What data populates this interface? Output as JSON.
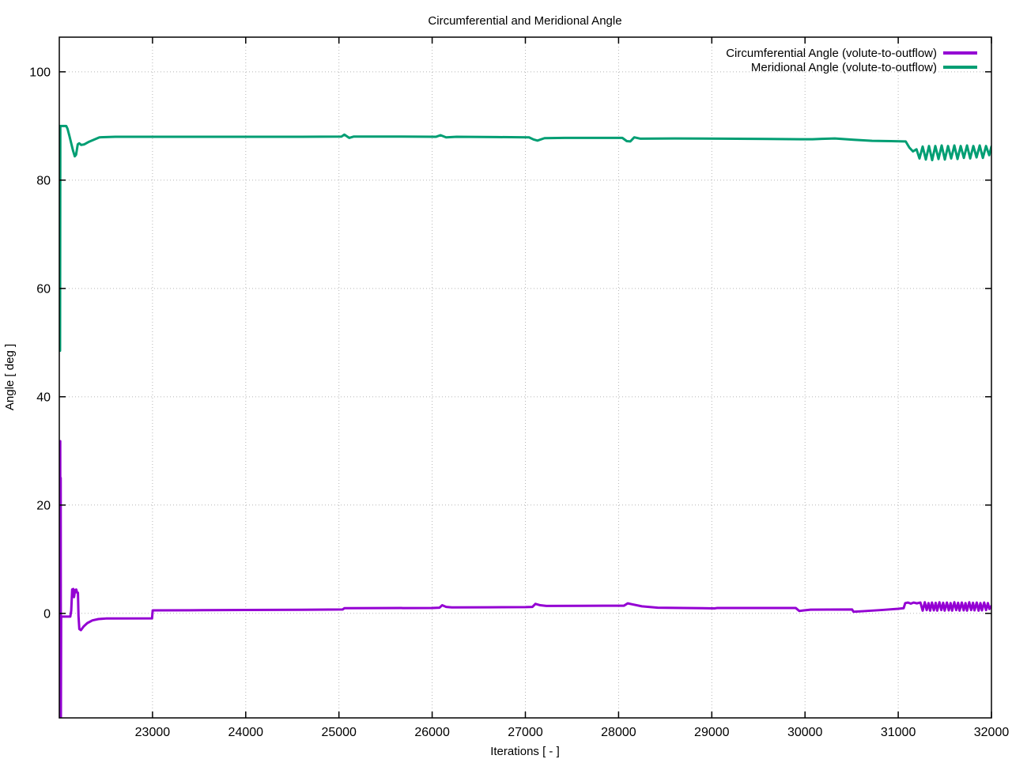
{
  "chart_data": {
    "type": "line",
    "title": "Circumferential and Meridional Angle",
    "xlabel": "Iterations [ - ]",
    "ylabel": "Angle [ deg ]",
    "xlim": [
      22000,
      32000
    ],
    "ylim": [
      -19.3,
      106.4
    ],
    "xticks": [
      23000,
      24000,
      25000,
      26000,
      27000,
      28000,
      29000,
      30000,
      31000,
      32000
    ],
    "yticks": [
      0,
      20,
      40,
      60,
      80,
      100
    ],
    "grid": true,
    "grid_style": "dotted",
    "grid_color": "#b5b5b5",
    "axis_color": "#000000",
    "background_color": "#ffffff",
    "legend_position": "top-right-inside",
    "series": [
      {
        "name": "Circumferential Angle (volute-to-outflow)",
        "color": "#9400d3",
        "points": [
          [
            22008,
            -19.5
          ],
          [
            22010,
            31.8
          ],
          [
            22012,
            -19.5
          ],
          [
            22015,
            25.0
          ],
          [
            22017,
            -19.5
          ],
          [
            22020,
            -0.6
          ],
          [
            22118,
            -0.6
          ],
          [
            22128,
            0.5
          ],
          [
            22138,
            4.4
          ],
          [
            22150,
            4.5
          ],
          [
            22158,
            3.0
          ],
          [
            22170,
            4.3
          ],
          [
            22182,
            4.4
          ],
          [
            22192,
            3.8
          ],
          [
            22200,
            3.8
          ],
          [
            22206,
            -0.5
          ],
          [
            22215,
            -2.9
          ],
          [
            22232,
            -3.1
          ],
          [
            22262,
            -2.4
          ],
          [
            22300,
            -1.8
          ],
          [
            22355,
            -1.3
          ],
          [
            22420,
            -1.05
          ],
          [
            22500,
            -0.95
          ],
          [
            22995,
            -0.92
          ],
          [
            23002,
            0.55
          ],
          [
            23400,
            0.58
          ],
          [
            24000,
            0.62
          ],
          [
            24600,
            0.66
          ],
          [
            25040,
            0.72
          ],
          [
            25058,
            0.95
          ],
          [
            25400,
            0.97
          ],
          [
            26000,
            1.0
          ],
          [
            26078,
            1.05
          ],
          [
            26108,
            1.5
          ],
          [
            26150,
            1.2
          ],
          [
            26210,
            1.1
          ],
          [
            26600,
            1.12
          ],
          [
            27000,
            1.15
          ],
          [
            27076,
            1.2
          ],
          [
            27108,
            1.75
          ],
          [
            27160,
            1.5
          ],
          [
            27225,
            1.38
          ],
          [
            27600,
            1.4
          ],
          [
            28058,
            1.42
          ],
          [
            28098,
            1.85
          ],
          [
            28140,
            1.7
          ],
          [
            28250,
            1.3
          ],
          [
            28420,
            1.05
          ],
          [
            28700,
            1.0
          ],
          [
            29030,
            0.92
          ],
          [
            29060,
            1.0
          ],
          [
            29500,
            1.0
          ],
          [
            29900,
            1.0
          ],
          [
            29938,
            0.45
          ],
          [
            29990,
            0.56
          ],
          [
            30060,
            0.68
          ],
          [
            30250,
            0.7
          ],
          [
            30505,
            0.72
          ],
          [
            30520,
            0.3
          ],
          [
            30620,
            0.4
          ],
          [
            30820,
            0.62
          ],
          [
            31000,
            0.85
          ],
          [
            31058,
            0.95
          ],
          [
            31075,
            1.9
          ],
          [
            31105,
            2.0
          ],
          [
            31135,
            1.8
          ],
          [
            31165,
            2.0
          ],
          [
            31200,
            1.85
          ],
          [
            31238,
            2.0
          ],
          [
            31262,
            0.5
          ],
          [
            31285,
            2.05
          ],
          [
            31305,
            0.6
          ],
          [
            31325,
            1.9
          ],
          [
            31342,
            0.5
          ],
          [
            31362,
            2.0
          ],
          [
            31382,
            0.55
          ],
          [
            31402,
            1.95
          ],
          [
            31418,
            0.5
          ],
          [
            31442,
            2.05
          ],
          [
            31462,
            0.6
          ],
          [
            31482,
            1.95
          ],
          [
            31498,
            0.5
          ],
          [
            31522,
            2.0
          ],
          [
            31542,
            0.55
          ],
          [
            31562,
            1.9
          ],
          [
            31578,
            0.5
          ],
          [
            31602,
            2.05
          ],
          [
            31622,
            0.6
          ],
          [
            31642,
            1.95
          ],
          [
            31658,
            0.5
          ],
          [
            31682,
            2.0
          ],
          [
            31702,
            0.55
          ],
          [
            31722,
            1.9
          ],
          [
            31738,
            0.5
          ],
          [
            31762,
            2.05
          ],
          [
            31782,
            0.6
          ],
          [
            31802,
            1.95
          ],
          [
            31818,
            0.55
          ],
          [
            31842,
            2.0
          ],
          [
            31862,
            0.5
          ],
          [
            31882,
            1.9
          ],
          [
            31898,
            0.55
          ],
          [
            31922,
            2.0
          ],
          [
            31942,
            0.6
          ],
          [
            31962,
            1.9
          ],
          [
            31978,
            0.8
          ],
          [
            32000,
            1.4
          ]
        ]
      },
      {
        "name": "Meridional Angle (volute-to-outflow)",
        "color": "#009e73",
        "points": [
          [
            22008,
            48.5
          ],
          [
            22011,
            90.0
          ],
          [
            22074,
            90.0
          ],
          [
            22088,
            89.5
          ],
          [
            22108,
            88.2
          ],
          [
            22128,
            86.8
          ],
          [
            22148,
            85.4
          ],
          [
            22166,
            84.4
          ],
          [
            22180,
            84.7
          ],
          [
            22198,
            86.6
          ],
          [
            22214,
            86.8
          ],
          [
            22235,
            86.5
          ],
          [
            22268,
            86.6
          ],
          [
            22320,
            87.1
          ],
          [
            22430,
            87.9
          ],
          [
            22600,
            88.0
          ],
          [
            23500,
            88.0
          ],
          [
            24500,
            88.0
          ],
          [
            25028,
            88.05
          ],
          [
            25058,
            88.4
          ],
          [
            25110,
            87.8
          ],
          [
            25160,
            88.05
          ],
          [
            25600,
            88.05
          ],
          [
            26040,
            88.0
          ],
          [
            26090,
            88.3
          ],
          [
            26150,
            87.9
          ],
          [
            26260,
            88.0
          ],
          [
            26700,
            87.95
          ],
          [
            27040,
            87.9
          ],
          [
            27088,
            87.5
          ],
          [
            27130,
            87.3
          ],
          [
            27205,
            87.75
          ],
          [
            27420,
            87.8
          ],
          [
            28040,
            87.8
          ],
          [
            28088,
            87.2
          ],
          [
            28126,
            87.15
          ],
          [
            28168,
            87.9
          ],
          [
            28235,
            87.65
          ],
          [
            28600,
            87.7
          ],
          [
            29100,
            87.65
          ],
          [
            29600,
            87.6
          ],
          [
            29950,
            87.55
          ],
          [
            30080,
            87.55
          ],
          [
            30180,
            87.62
          ],
          [
            30320,
            87.7
          ],
          [
            30520,
            87.45
          ],
          [
            30720,
            87.25
          ],
          [
            30920,
            87.2
          ],
          [
            31080,
            87.15
          ],
          [
            31120,
            86.0
          ],
          [
            31158,
            85.3
          ],
          [
            31196,
            85.7
          ],
          [
            31228,
            84.0
          ],
          [
            31262,
            86.2
          ],
          [
            31296,
            83.8
          ],
          [
            31330,
            86.3
          ],
          [
            31364,
            83.7
          ],
          [
            31398,
            86.3
          ],
          [
            31432,
            83.9
          ],
          [
            31466,
            86.4
          ],
          [
            31500,
            83.8
          ],
          [
            31534,
            86.3
          ],
          [
            31568,
            84.0
          ],
          [
            31602,
            86.4
          ],
          [
            31636,
            83.9
          ],
          [
            31670,
            86.3
          ],
          [
            31704,
            84.1
          ],
          [
            31738,
            86.4
          ],
          [
            31772,
            84.0
          ],
          [
            31806,
            86.3
          ],
          [
            31840,
            84.2
          ],
          [
            31874,
            86.4
          ],
          [
            31908,
            84.1
          ],
          [
            31942,
            86.3
          ],
          [
            31976,
            84.6
          ],
          [
            32000,
            86.2
          ]
        ]
      }
    ]
  }
}
